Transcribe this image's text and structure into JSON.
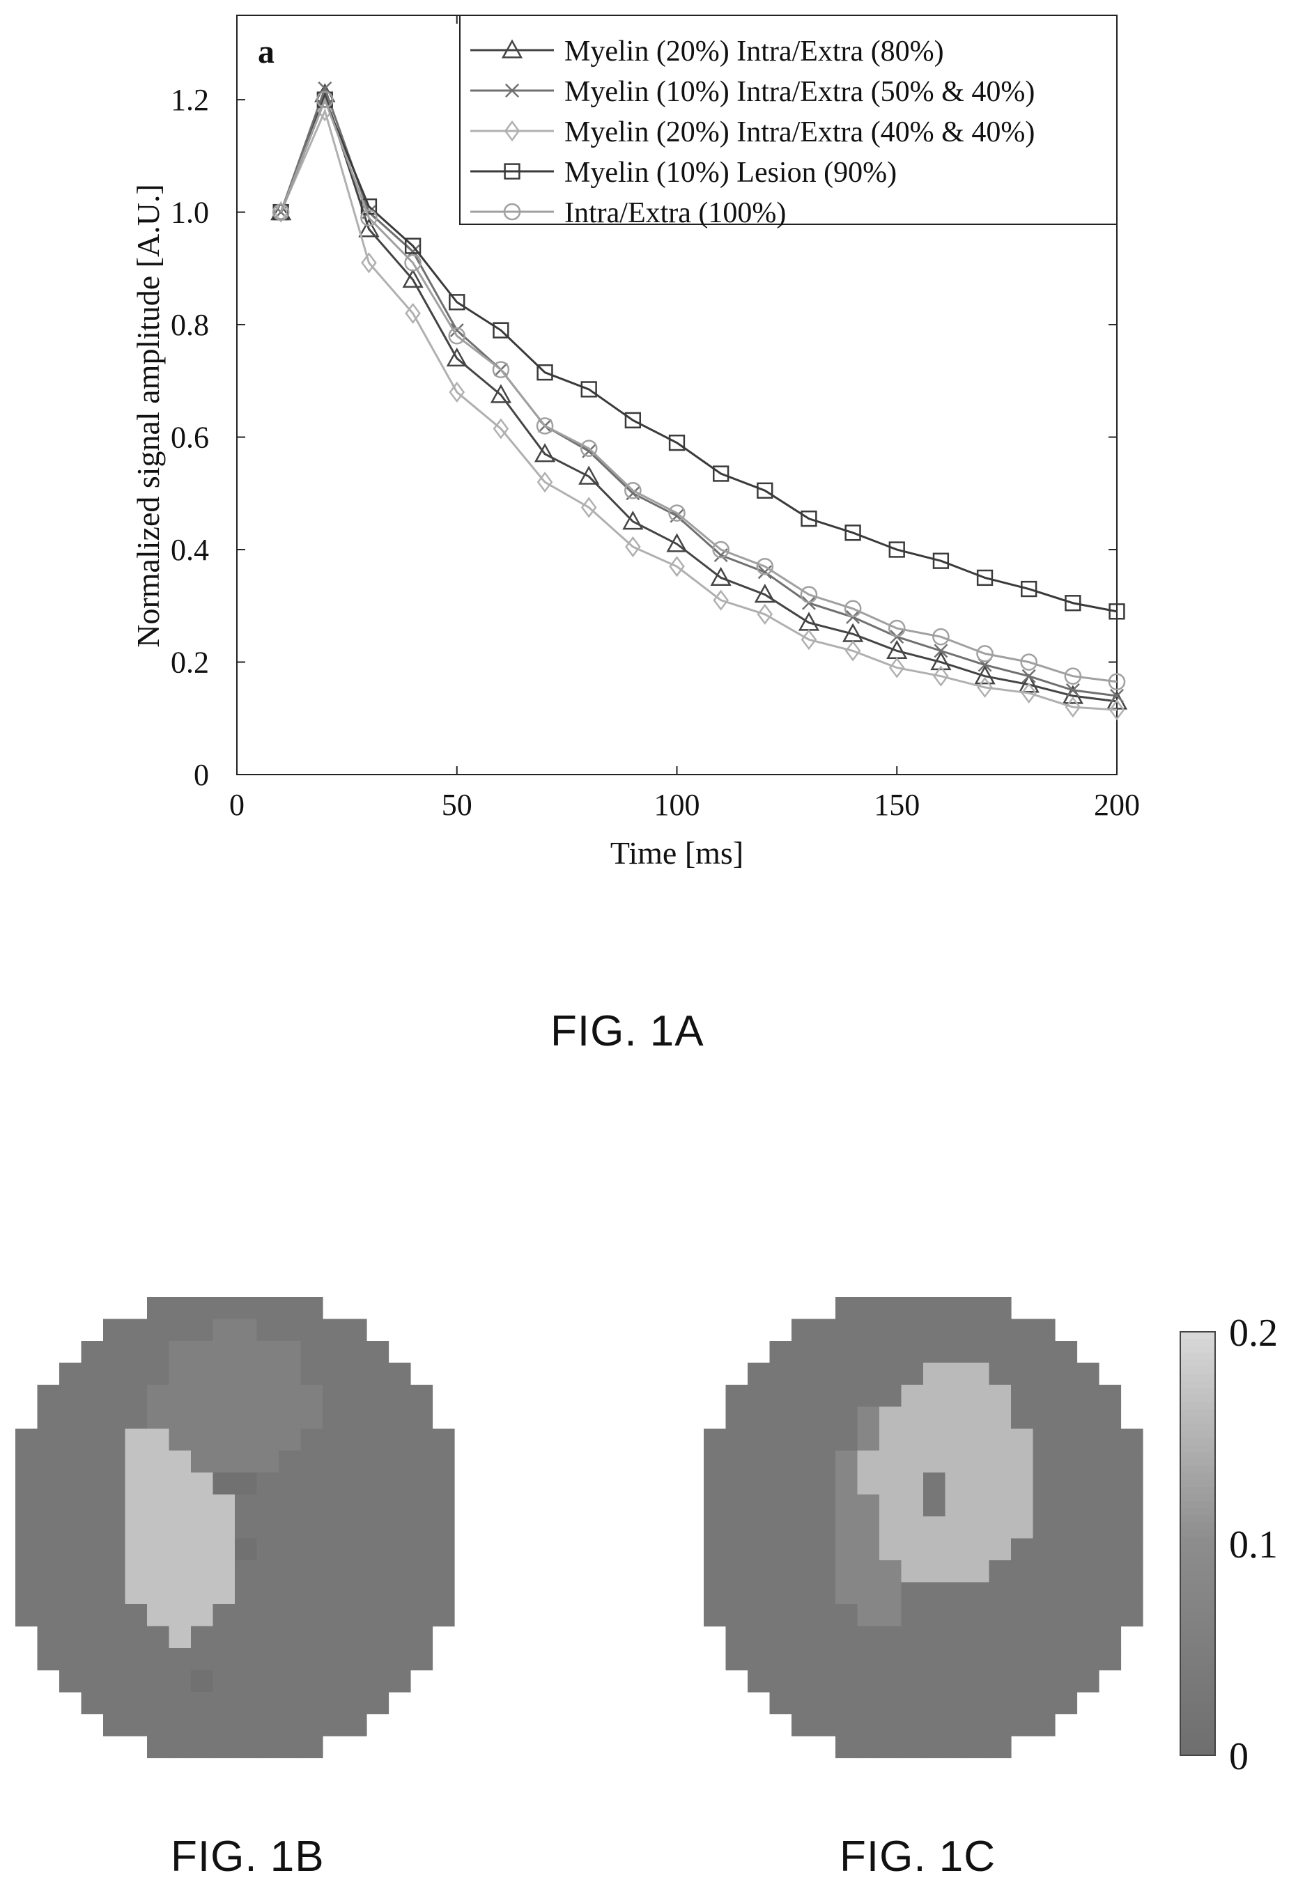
{
  "chart_data": [
    {
      "type": "line",
      "panel_label": "a",
      "xlabel": "Time [ms]",
      "ylabel": "Normalized signal amplitude [A.U.]",
      "xlim": [
        0,
        200
      ],
      "ylim": [
        0,
        1.35
      ],
      "xticks": [
        0,
        50,
        100,
        150,
        200
      ],
      "yticks": [
        0,
        0.2,
        0.4,
        0.6,
        0.8,
        1.0,
        1.2
      ],
      "ytick_labels": [
        "0",
        "0.2",
        "0.4",
        "0.6",
        "0.8",
        "1.0",
        "1.2"
      ],
      "legend_position": "top-right",
      "x": [
        10,
        20,
        30,
        40,
        50,
        60,
        70,
        80,
        90,
        100,
        110,
        120,
        130,
        140,
        150,
        160,
        170,
        180,
        190,
        200
      ],
      "series": [
        {
          "name": "Myelin (20%) Intra/Extra (80%)",
          "marker": "triangle",
          "color": "#444444",
          "values": [
            1.0,
            1.21,
            0.97,
            0.88,
            0.74,
            0.675,
            0.57,
            0.53,
            0.45,
            0.41,
            0.35,
            0.32,
            0.27,
            0.25,
            0.22,
            0.2,
            0.175,
            0.16,
            0.14,
            0.13
          ]
        },
        {
          "name": "Myelin (10%) Intra/Extra (50% & 40%)",
          "marker": "x",
          "color": "#707070",
          "values": [
            1.0,
            1.22,
            1.0,
            0.93,
            0.79,
            0.72,
            0.62,
            0.575,
            0.5,
            0.46,
            0.39,
            0.36,
            0.305,
            0.28,
            0.245,
            0.22,
            0.195,
            0.175,
            0.15,
            0.14
          ]
        },
        {
          "name": "Myelin (20%) Intra/Extra (40% & 40%)",
          "marker": "diamond",
          "color": "#b0b0b0",
          "values": [
            1.0,
            1.18,
            0.91,
            0.82,
            0.68,
            0.615,
            0.52,
            0.475,
            0.405,
            0.37,
            0.31,
            0.285,
            0.24,
            0.22,
            0.19,
            0.175,
            0.155,
            0.145,
            0.12,
            0.115
          ]
        },
        {
          "name": "Myelin (10%) Lesion (90%)",
          "marker": "square",
          "color": "#3a3a3a",
          "values": [
            1.0,
            1.2,
            1.01,
            0.94,
            0.84,
            0.79,
            0.715,
            0.685,
            0.63,
            0.59,
            0.535,
            0.505,
            0.455,
            0.43,
            0.4,
            0.38,
            0.35,
            0.33,
            0.305,
            0.29
          ]
        },
        {
          "name": "Intra/Extra (100%)",
          "marker": "circle",
          "color": "#a0a0a0",
          "values": [
            1.0,
            1.2,
            0.99,
            0.91,
            0.78,
            0.72,
            0.62,
            0.58,
            0.505,
            0.465,
            0.4,
            0.37,
            0.32,
            0.295,
            0.26,
            0.245,
            0.215,
            0.2,
            0.175,
            0.165
          ]
        }
      ]
    },
    {
      "type": "heatmap",
      "colorbar": {
        "tick_labels": [
          "0.2",
          "0.1",
          "0"
        ],
        "ticks": [
          0.2,
          0.1,
          0
        ],
        "range": [
          0,
          0.2
        ],
        "colors": [
          "#6e6e6e",
          "#8c8c8c",
          "#d9d9d9"
        ]
      },
      "levels": {
        "background": 0.03,
        "b_bright": 0.17,
        "b_mid": 0.06,
        "b_dark": 0.01,
        "c_bright": 0.16,
        "c_mid": 0.08
      }
    }
  ],
  "captions": {
    "fig_1a": "FIG. 1A",
    "fig_1b": "FIG. 1B",
    "fig_1c": "FIG. 1C"
  }
}
